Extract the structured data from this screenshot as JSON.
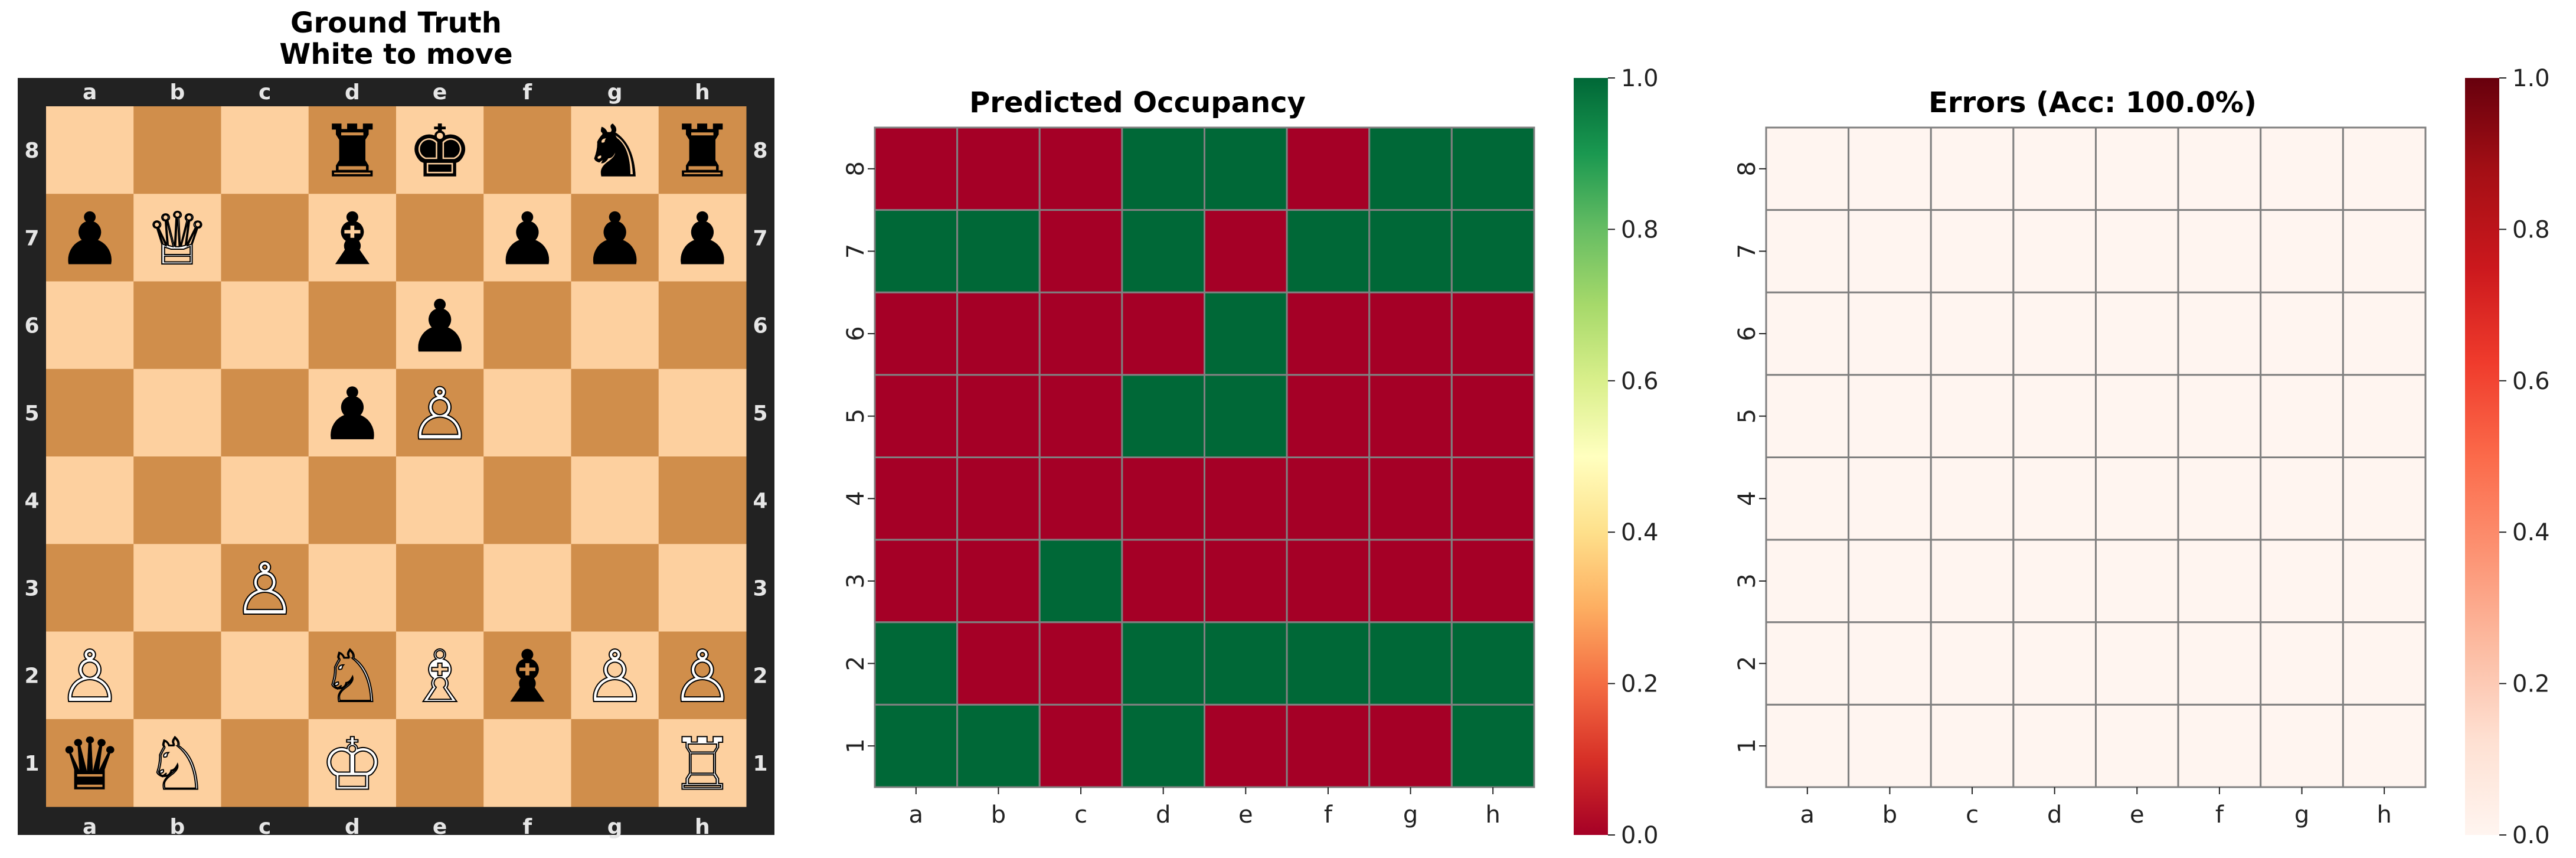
{
  "files": [
    "a",
    "b",
    "c",
    "d",
    "e",
    "f",
    "g",
    "h"
  ],
  "ranks": [
    "8",
    "7",
    "6",
    "5",
    "4",
    "3",
    "2",
    "1"
  ],
  "chart_data": [
    {
      "type": "board",
      "title_line1": "Ground Truth",
      "title_line2": "White to move",
      "colors": {
        "light": "#fdd09f",
        "dark": "#d08e4b",
        "border": "#222222"
      },
      "pieces": [
        {
          "square": "d8",
          "glyph": "♜",
          "color": "black",
          "name": "black-rook"
        },
        {
          "square": "e8",
          "glyph": "♚",
          "color": "black",
          "name": "black-king"
        },
        {
          "square": "g8",
          "glyph": "♞",
          "color": "black",
          "name": "black-knight"
        },
        {
          "square": "h8",
          "glyph": "♜",
          "color": "black",
          "name": "black-rook"
        },
        {
          "square": "a7",
          "glyph": "♟",
          "color": "black",
          "name": "black-pawn"
        },
        {
          "square": "b7",
          "glyph": "♕",
          "color": "white",
          "name": "white-queen"
        },
        {
          "square": "d7",
          "glyph": "♝",
          "color": "black",
          "name": "black-bishop"
        },
        {
          "square": "f7",
          "glyph": "♟",
          "color": "black",
          "name": "black-pawn"
        },
        {
          "square": "g7",
          "glyph": "♟",
          "color": "black",
          "name": "black-pawn"
        },
        {
          "square": "h7",
          "glyph": "♟",
          "color": "black",
          "name": "black-pawn"
        },
        {
          "square": "e6",
          "glyph": "♟",
          "color": "black",
          "name": "black-pawn"
        },
        {
          "square": "d5",
          "glyph": "♟",
          "color": "black",
          "name": "black-pawn"
        },
        {
          "square": "e5",
          "glyph": "♙",
          "color": "white",
          "name": "white-pawn"
        },
        {
          "square": "c3",
          "glyph": "♙",
          "color": "white",
          "name": "white-pawn"
        },
        {
          "square": "a2",
          "glyph": "♙",
          "color": "white",
          "name": "white-pawn"
        },
        {
          "square": "d2",
          "glyph": "♘",
          "color": "white",
          "name": "white-knight"
        },
        {
          "square": "e2",
          "glyph": "♗",
          "color": "white",
          "name": "white-bishop"
        },
        {
          "square": "f2",
          "glyph": "♝",
          "color": "black",
          "name": "black-bishop"
        },
        {
          "square": "g2",
          "glyph": "♙",
          "color": "white",
          "name": "white-pawn"
        },
        {
          "square": "h2",
          "glyph": "♙",
          "color": "white",
          "name": "white-pawn"
        },
        {
          "square": "a1",
          "glyph": "♛",
          "color": "black",
          "name": "black-queen"
        },
        {
          "square": "b1",
          "glyph": "♘",
          "color": "white",
          "name": "white-knight"
        },
        {
          "square": "d1",
          "glyph": "♔",
          "color": "white",
          "name": "white-king"
        },
        {
          "square": "h1",
          "glyph": "♖",
          "color": "white",
          "name": "white-rook"
        }
      ]
    },
    {
      "type": "heatmap",
      "title": "Predicted Occupancy",
      "colormap": "RdYlGn",
      "vmin": 0,
      "vmax": 1,
      "colorbar_ticks": [
        "0.0",
        "0.2",
        "0.4",
        "0.6",
        "0.8",
        "1.0"
      ],
      "rows": [
        "8",
        "7",
        "6",
        "5",
        "4",
        "3",
        "2",
        "1"
      ],
      "cols": [
        "a",
        "b",
        "c",
        "d",
        "e",
        "f",
        "g",
        "h"
      ],
      "values": [
        [
          0,
          0,
          0,
          1,
          1,
          0,
          1,
          1
        ],
        [
          1,
          1,
          0,
          1,
          0,
          1,
          1,
          1
        ],
        [
          0,
          0,
          0,
          0,
          1,
          0,
          0,
          0
        ],
        [
          0,
          0,
          0,
          1,
          1,
          0,
          0,
          0
        ],
        [
          0,
          0,
          0,
          0,
          0,
          0,
          0,
          0
        ],
        [
          0,
          0,
          1,
          0,
          0,
          0,
          0,
          0
        ],
        [
          1,
          0,
          0,
          1,
          1,
          1,
          1,
          1
        ],
        [
          1,
          1,
          0,
          1,
          0,
          0,
          0,
          1
        ]
      ]
    },
    {
      "type": "heatmap",
      "title": "Errors (Acc: 100.0%)",
      "colormap": "Reds",
      "vmin": 0,
      "vmax": 1,
      "colorbar_ticks": [
        "0.0",
        "0.2",
        "0.4",
        "0.6",
        "0.8",
        "1.0"
      ],
      "rows": [
        "8",
        "7",
        "6",
        "5",
        "4",
        "3",
        "2",
        "1"
      ],
      "cols": [
        "a",
        "b",
        "c",
        "d",
        "e",
        "f",
        "g",
        "h"
      ],
      "values": [
        [
          0,
          0,
          0,
          0,
          0,
          0,
          0,
          0
        ],
        [
          0,
          0,
          0,
          0,
          0,
          0,
          0,
          0
        ],
        [
          0,
          0,
          0,
          0,
          0,
          0,
          0,
          0
        ],
        [
          0,
          0,
          0,
          0,
          0,
          0,
          0,
          0
        ],
        [
          0,
          0,
          0,
          0,
          0,
          0,
          0,
          0
        ],
        [
          0,
          0,
          0,
          0,
          0,
          0,
          0,
          0
        ],
        [
          0,
          0,
          0,
          0,
          0,
          0,
          0,
          0
        ],
        [
          0,
          0,
          0,
          0,
          0,
          0,
          0,
          0
        ]
      ]
    }
  ]
}
